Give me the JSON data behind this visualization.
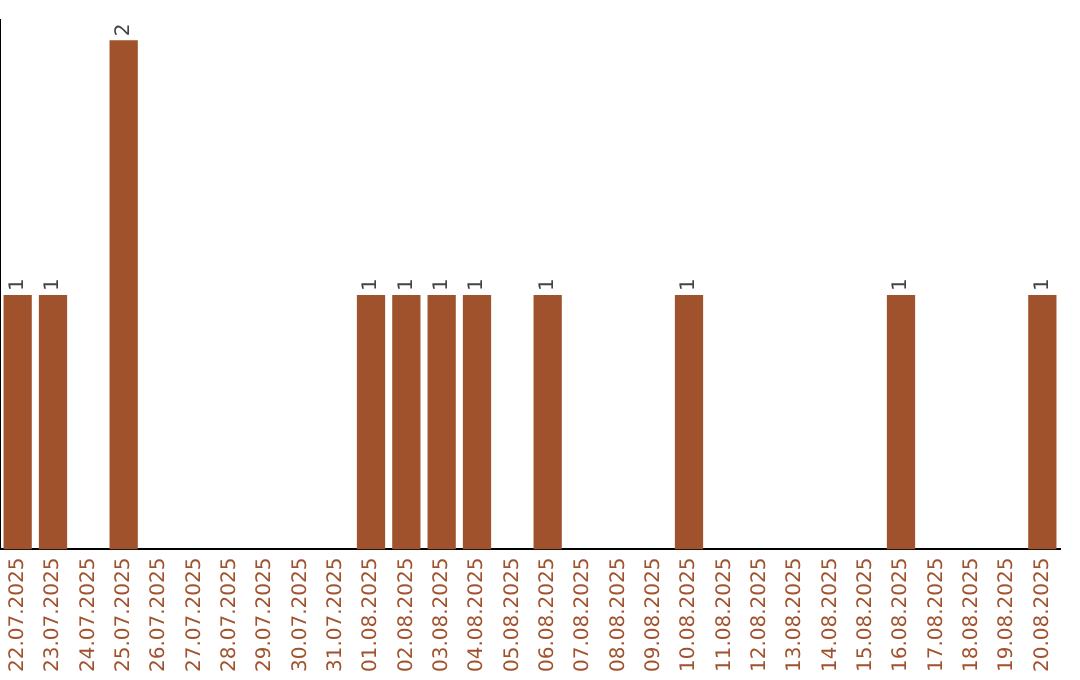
{
  "chart_data": {
    "type": "bar",
    "categories": [
      "22.07.2025",
      "23.07.2025",
      "24.07.2025",
      "25.07.2025",
      "26.07.2025",
      "27.07.2025",
      "28.07.2025",
      "29.07.2025",
      "30.07.2025",
      "31.07.2025",
      "01.08.2025",
      "02.08.2025",
      "03.08.2025",
      "04.08.2025",
      "05.08.2025",
      "06.08.2025",
      "07.08.2025",
      "08.08.2025",
      "09.08.2025",
      "10.08.2025",
      "11.08.2025",
      "12.08.2025",
      "13.08.2025",
      "14.08.2025",
      "15.08.2025",
      "16.08.2025",
      "17.08.2025",
      "18.08.2025",
      "19.08.2025",
      "20.08.2025"
    ],
    "values": [
      1,
      1,
      0,
      2,
      0,
      0,
      0,
      0,
      0,
      0,
      1,
      1,
      1,
      1,
      0,
      1,
      0,
      0,
      0,
      1,
      0,
      0,
      0,
      0,
      0,
      1,
      0,
      0,
      0,
      1
    ],
    "value_labels": [
      "1",
      "1",
      null,
      "2",
      null,
      null,
      null,
      null,
      null,
      null,
      "1",
      "1",
      "1",
      "1",
      null,
      "1",
      null,
      null,
      null,
      "1",
      null,
      null,
      null,
      null,
      null,
      "1",
      null,
      null,
      null,
      "1"
    ],
    "color": "#a0522d",
    "ylim": [
      0,
      2.08
    ],
    "tick_labels": "x",
    "grid": false,
    "legend": false
  }
}
